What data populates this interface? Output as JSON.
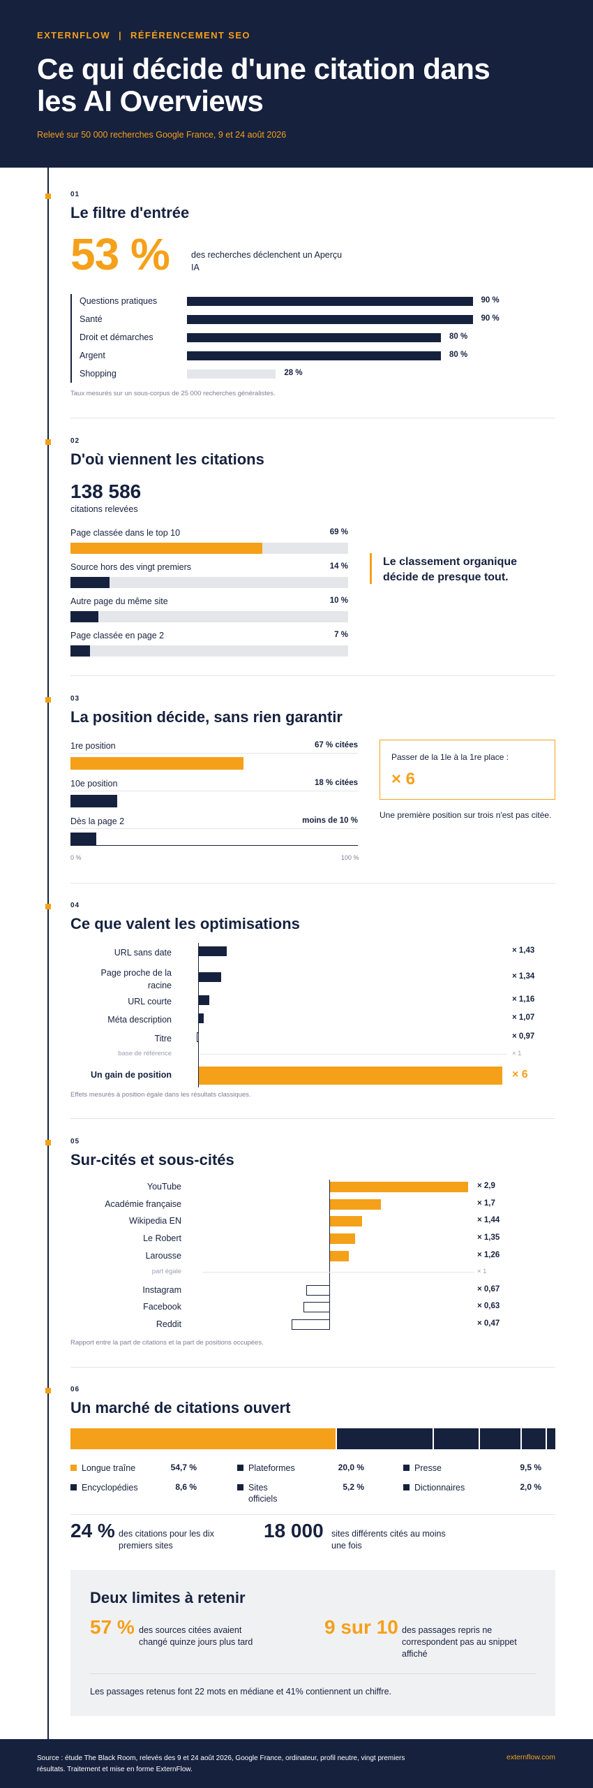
{
  "header": {
    "brand": "EXTERNFLOW",
    "separator": "|",
    "category": "RÉFÉRENCEMENT SEO",
    "title": "Ce qui décide d'une citation dans les AI Overviews",
    "subtitle": "Relevé sur 50 000 recherches Google France, 9 et 24 août 2026"
  },
  "s1": {
    "num": "01",
    "title": "Le filtre d'entrée",
    "big": "53 %",
    "big_text": "des recherches déclenchent un Aperçu IA",
    "rows": [
      {
        "label": "Questions pratiques",
        "value": "90 %",
        "pct": 90,
        "style": "navy"
      },
      {
        "label": "Santé",
        "value": "90 %",
        "pct": 90,
        "style": "navy"
      },
      {
        "label": "Droit et démarches",
        "value": "80 %",
        "pct": 80,
        "style": "navy"
      },
      {
        "label": "Argent",
        "value": "80 %",
        "pct": 80,
        "style": "navy"
      },
      {
        "label": "Shopping",
        "value": "28 %",
        "pct": 28,
        "style": "grey"
      }
    ],
    "note": "Taux mesurés sur un sous-corpus de 25 000 recherches généralistes."
  },
  "s2": {
    "num": "02",
    "title": "D'où viennent les citations",
    "big": "138 586",
    "big_text": "citations relevées",
    "rows": [
      {
        "label": "Page classée dans le top 10",
        "value": "69 %",
        "pct": 69,
        "color": "#f5a019"
      },
      {
        "label": "Source hors des vingt premiers",
        "value": "14 %",
        "pct": 14,
        "color": "#16213e"
      },
      {
        "label": "Autre page du même site",
        "value": "10 %",
        "pct": 10,
        "color": "#16213e"
      },
      {
        "label": "Page classée en page 2",
        "value": "7 %",
        "pct": 7,
        "color": "#16213e"
      }
    ],
    "quote": "Le classement organique décide de presque tout."
  },
  "s3": {
    "num": "03",
    "title": "La position décide, sans rien garantir",
    "rows": [
      {
        "label": "1re position",
        "value": "67 % citées",
        "pct": 67,
        "color": "#f5a019"
      },
      {
        "label": "10e position",
        "value": "18 % citées",
        "pct": 18,
        "color": "#16213e"
      },
      {
        "label": "Dès la page 2",
        "value": "moins de 10 %",
        "pct": 10,
        "color": "#16213e"
      }
    ],
    "axis_min": "0 %",
    "axis_max": "100 %",
    "callout_label": "Passer de la 1le à la 1re place :",
    "callout_value": "× 6",
    "callout_text": "Une première position sur trois n'est pas citée."
  },
  "s4": {
    "num": "04",
    "title": "Ce que valent les optimisations",
    "rows": [
      {
        "label": "URL sans date",
        "value": "× 1,43",
        "mult": 1.43
      },
      {
        "label": "Page proche de la racine",
        "value": "× 1,34",
        "mult": 1.34
      },
      {
        "label": "URL courte",
        "value": "× 1,16",
        "mult": 1.16
      },
      {
        "label": "Méta description",
        "value": "× 1,07",
        "mult": 1.07
      },
      {
        "label": "Titre",
        "value": "× 0,97",
        "mult": 0.97
      }
    ],
    "baseline_label": "base de référence",
    "baseline_value": "× 1",
    "gain_label": "Un gain de position",
    "gain_value": "× 6",
    "gain_mult": 6,
    "note": "Effets mesurés à position égale dans les résultats classiques."
  },
  "s5": {
    "num": "05",
    "title": "Sur-cités et sous-cités",
    "rows": [
      {
        "label": "YouTube",
        "value": "× 2,9",
        "ratio": 2.9
      },
      {
        "label": "Académie française",
        "value": "× 1,7",
        "ratio": 1.7
      },
      {
        "label": "Wikipedia EN",
        "value": "× 1,44",
        "ratio": 1.44
      },
      {
        "label": "Le Robert",
        "value": "× 1,35",
        "ratio": 1.35
      },
      {
        "label": "Larousse",
        "value": "× 1,26",
        "ratio": 1.26
      },
      {
        "label": "Instagram",
        "value": "× 0,67",
        "ratio": 0.67
      },
      {
        "label": "Facebook",
        "value": "× 0,63",
        "ratio": 0.63
      },
      {
        "label": "Reddit",
        "value": "× 0,47",
        "ratio": 0.47
      }
    ],
    "parity_label": "part égale",
    "parity_value": "× 1",
    "note": "Rapport entre la part de citations et la part de positions occupées."
  },
  "s6": {
    "num": "06",
    "title": "Un marché de citations ouvert",
    "segments": [
      {
        "label": "Longue traîne",
        "value": "54,7 %",
        "pct": 54.7,
        "color": "#f5a019"
      },
      {
        "label": "Plateformes",
        "value": "20,0 %",
        "pct": 20.0,
        "color": "#16213e"
      },
      {
        "label": "Presse",
        "value": "9,5 %",
        "pct": 9.5,
        "color": "#16213e"
      },
      {
        "label": "Encyclopédies",
        "value": "8,6 %",
        "pct": 8.6,
        "color": "#16213e"
      },
      {
        "label": "Sites officiels",
        "value": "5,2 %",
        "pct": 5.2,
        "color": "#16213e"
      },
      {
        "label": "Dictionnaires",
        "value": "2,0 %",
        "pct": 2.0,
        "color": "#16213e"
      }
    ],
    "stat1_big": "24 %",
    "stat1_text": "des citations pour les dix premiers sites",
    "stat2_big": "18 000",
    "stat2_text": "sites différents cités au moins une fois"
  },
  "limits": {
    "title": "Deux limites à retenir",
    "a_big": "57 %",
    "a_text": "des sources citées avaient changé quinze jours plus tard",
    "b_big": "9 sur 10",
    "b_text": "des passages repris ne correspondent pas au snippet affiché",
    "footnote": "Les passages retenus font 22 mots en médiane et 41% contiennent un chiffre."
  },
  "footer": {
    "source": "Source : étude The Black Room, relevés des 9 et 24 août 2026, Google France, ordinateur, profil neutre, vingt premiers résultats. Traitement et mise en forme ExternFlow.",
    "site": "externflow.com"
  },
  "colors": {
    "navy": "#16213e",
    "orange": "#f5a019",
    "grey": "#e5e6ea"
  }
}
